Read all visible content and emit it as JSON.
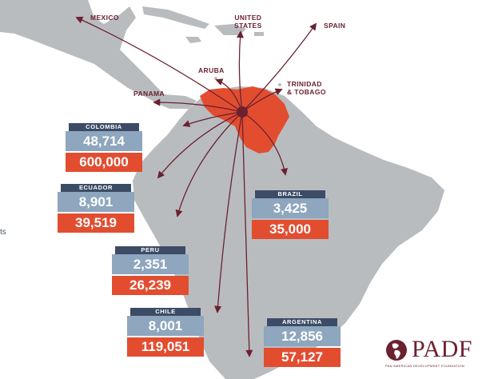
{
  "destinations": {
    "mexico": "MEXICO",
    "united_states": "UNITED\nSTATES",
    "spain": "SPAIN",
    "aruba": "ARUBA",
    "trinidad_tobago": "TRINIDAD\n& TOBAGO",
    "panama": "PANAMA"
  },
  "countries": [
    {
      "name": "COLOMBIA",
      "value_top": "48,714",
      "value_bottom": "600,000"
    },
    {
      "name": "ECUADOR",
      "value_top": "8,901",
      "value_bottom": "39,519"
    },
    {
      "name": "BRAZIL",
      "value_top": "3,425",
      "value_bottom": "35,000"
    },
    {
      "name": "PERU",
      "value_top": "2,351",
      "value_bottom": "26,239"
    },
    {
      "name": "CHILE",
      "value_top": "8,001",
      "value_bottom": "119,051"
    },
    {
      "name": "ARGENTINA",
      "value_top": "12,856",
      "value_bottom": "57,127"
    }
  ],
  "left_fragment": "ts",
  "logo": {
    "word": "PADF",
    "sub": "PAN AMERICAN DEVELOPMENT FOUNDATION"
  },
  "colors": {
    "land": "#b9bcbf",
    "water": "#ffffff",
    "venezuela": "#e24d30",
    "arrow": "#6b2130",
    "card_header": "#3c4c66",
    "card_top": "#8ea6be",
    "card_bottom": "#e24d30"
  }
}
